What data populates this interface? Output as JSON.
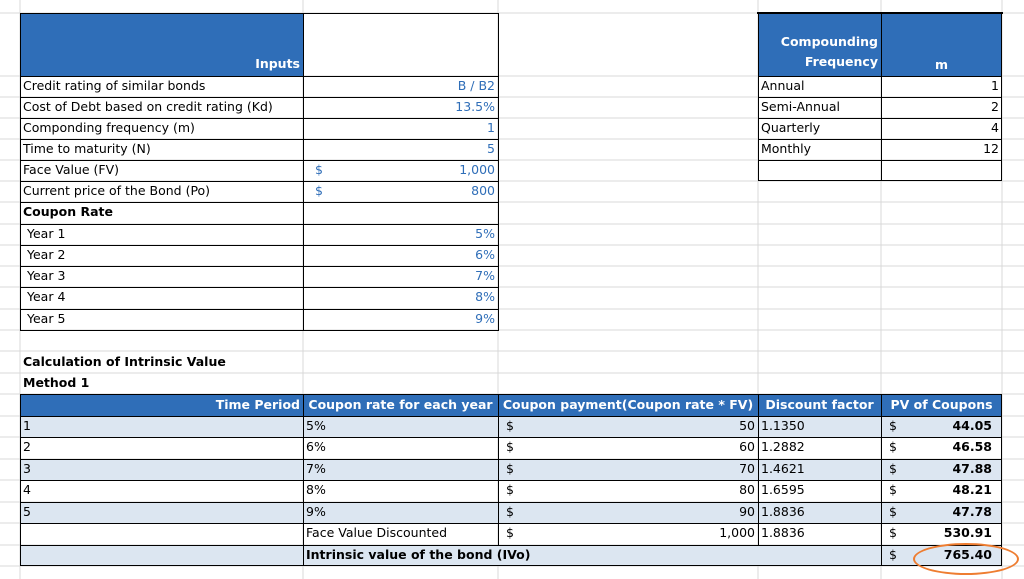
{
  "inputs": {
    "header": "Inputs",
    "rows": [
      {
        "label": "Credit rating of similar bonds",
        "currency": "",
        "value": "B / B2"
      },
      {
        "label": "Cost of Debt based on credit rating (Kd)",
        "currency": "",
        "value": "13.5%"
      },
      {
        "label": "Componding frequency (m)",
        "currency": "",
        "value": "1"
      },
      {
        "label": "Time to maturity (N)",
        "currency": "",
        "value": "5"
      },
      {
        "label": "Face Value (FV)",
        "currency": "$",
        "value": "1,000"
      },
      {
        "label": "Current price of the Bond (Po)",
        "currency": "$",
        "value": "800"
      }
    ],
    "coupon_rate_label": "Coupon Rate",
    "coupon_rates": [
      {
        "year": "Year 1",
        "rate": "5%"
      },
      {
        "year": "Year 2",
        "rate": "6%"
      },
      {
        "year": "Year 3",
        "rate": "7%"
      },
      {
        "year": "Year 4",
        "rate": "8%"
      },
      {
        "year": "Year 5",
        "rate": "9%"
      }
    ]
  },
  "compounding": {
    "header_line1": "Compounding",
    "header_line2": "Frequency",
    "header_m": "m",
    "rows": [
      {
        "label": "Annual",
        "m": "1"
      },
      {
        "label": "Semi-Annual",
        "m": "2"
      },
      {
        "label": "Quarterly",
        "m": "4"
      },
      {
        "label": "Monthly",
        "m": "12"
      }
    ]
  },
  "calc": {
    "title": "Calculation of Intrinsic Value",
    "method": "Method 1",
    "headers": {
      "time_period": "Time Period",
      "coupon_rate": "Coupon rate for each year",
      "coupon_payment": "Coupon payment(Coupon rate * FV)",
      "discount_factor": "Discount factor",
      "pv": "PV of Coupons"
    },
    "rows": [
      {
        "period": "1",
        "rate": "5%",
        "currency": "$",
        "payment": "50",
        "factor": "1.1350",
        "pv_currency": "$",
        "pv": "44.05"
      },
      {
        "period": "2",
        "rate": "6%",
        "currency": "$",
        "payment": "60",
        "factor": "1.2882",
        "pv_currency": "$",
        "pv": "46.58"
      },
      {
        "period": "3",
        "rate": "7%",
        "currency": "$",
        "payment": "70",
        "factor": "1.4621",
        "pv_currency": "$",
        "pv": "47.88"
      },
      {
        "period": "4",
        "rate": "8%",
        "currency": "$",
        "payment": "80",
        "factor": "1.6595",
        "pv_currency": "$",
        "pv": "48.21"
      },
      {
        "period": "5",
        "rate": "9%",
        "currency": "$",
        "payment": "90",
        "factor": "1.8836",
        "pv_currency": "$",
        "pv": "47.78"
      }
    ],
    "face_value_row": {
      "label": "Face Value Discounted",
      "currency": "$",
      "payment": "1,000",
      "factor": "1.8836",
      "pv_currency": "$",
      "pv": "530.91"
    },
    "intrinsic_row": {
      "label": "Intrinsic value of the bond (IVo)",
      "pv_currency": "$",
      "pv": "765.40"
    }
  },
  "colors": {
    "header_blue": "#2f6eb8",
    "band_blue": "#dce6f1",
    "input_blue_text": "#2f6eb8",
    "highlight_orange": "#ee7d31"
  }
}
